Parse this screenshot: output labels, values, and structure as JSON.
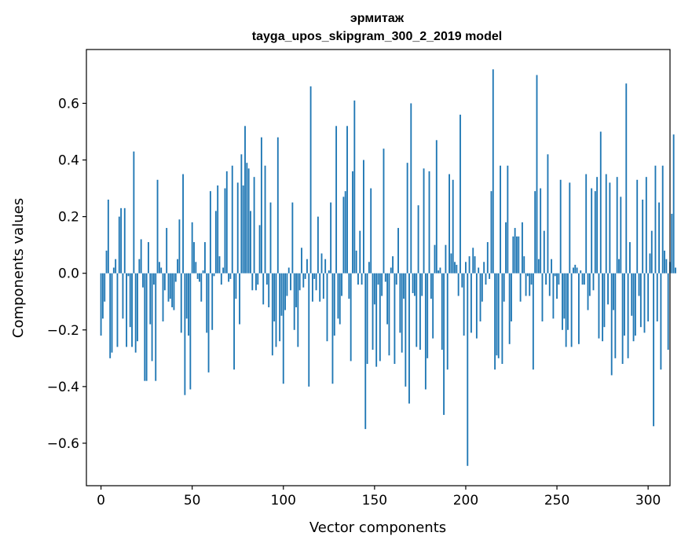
{
  "chart_data": {
    "type": "bar",
    "title": "эрмитаж",
    "subtitle": "tayga_upos_skipgram_300_2_2019 model",
    "xlabel": "Vector components",
    "ylabel": "Components values",
    "xlim": [
      -8,
      312
    ],
    "ylim": [
      -0.75,
      0.79
    ],
    "xticks": [
      0,
      50,
      100,
      150,
      200,
      250,
      300
    ],
    "xtick_labels": [
      "0",
      "50",
      "100",
      "150",
      "200",
      "250",
      "300"
    ],
    "yticks": [
      -0.6,
      -0.4,
      -0.2,
      0.0,
      0.2,
      0.4,
      0.6
    ],
    "ytick_labels": [
      "−0.6",
      "−0.4",
      "−0.2",
      "0.0",
      "0.2",
      "0.4",
      "0.6"
    ],
    "color": "#1f77b4",
    "values": [
      -0.22,
      -0.16,
      -0.1,
      0.08,
      0.26,
      -0.3,
      -0.28,
      0.02,
      0.05,
      -0.26,
      0.2,
      0.23,
      -0.16,
      0.23,
      -0.26,
      -0.01,
      -0.19,
      -0.26,
      0.43,
      -0.28,
      -0.24,
      0.05,
      0.12,
      -0.05,
      -0.38,
      -0.38,
      0.11,
      -0.18,
      -0.31,
      -0.04,
      -0.38,
      0.33,
      0.04,
      0.02,
      -0.17,
      -0.06,
      0.16,
      -0.1,
      -0.09,
      -0.12,
      -0.13,
      -0.03,
      0.05,
      0.19,
      -0.21,
      0.35,
      -0.43,
      -0.16,
      -0.22,
      -0.41,
      0.18,
      0.11,
      0.04,
      -0.02,
      -0.03,
      -0.1,
      0.01,
      0.11,
      -0.21,
      -0.35,
      0.29,
      -0.2,
      -0.01,
      0.22,
      0.31,
      0.06,
      -0.04,
      0.02,
      0.3,
      0.36,
      -0.03,
      -0.02,
      0.38,
      -0.34,
      -0.09,
      0.32,
      -0.18,
      0.42,
      0.31,
      0.52,
      0.39,
      0.37,
      0.22,
      -0.06,
      0.34,
      -0.06,
      -0.04,
      0.17,
      0.48,
      -0.11,
      0.38,
      -0.04,
      -0.12,
      0.25,
      -0.29,
      -0.17,
      -0.26,
      0.48,
      -0.24,
      -0.15,
      -0.39,
      -0.13,
      -0.08,
      0.02,
      -0.06,
      0.25,
      -0.2,
      -0.12,
      -0.26,
      -0.06,
      0.09,
      -0.05,
      -0.02,
      0.05,
      -0.4,
      0.66,
      -0.1,
      -0.02,
      -0.06,
      0.2,
      -0.1,
      0.07,
      -0.09,
      0.05,
      -0.24,
      0.01,
      0.25,
      -0.39,
      -0.22,
      0.52,
      -0.16,
      -0.18,
      -0.08,
      0.27,
      0.29,
      0.52,
      -0.09,
      -0.31,
      0.36,
      0.61,
      0.08,
      -0.04,
      0.15,
      -0.04,
      0.4,
      -0.55,
      -0.32,
      0.04,
      0.3,
      -0.27,
      -0.11,
      -0.33,
      -0.04,
      -0.31,
      -0.08,
      0.44,
      -0.03,
      -0.18,
      -0.29,
      0.02,
      0.06,
      -0.32,
      -0.04,
      0.16,
      -0.21,
      -0.28,
      -0.09,
      -0.4,
      0.39,
      -0.46,
      0.6,
      -0.07,
      -0.08,
      -0.26,
      0.24,
      -0.27,
      -0.08,
      0.37,
      -0.41,
      -0.3,
      0.36,
      -0.09,
      -0.23,
      0.1,
      0.47,
      0.01,
      0.02,
      -0.27,
      -0.5,
      0.1,
      -0.34,
      0.35,
      0.07,
      0.33,
      0.04,
      0.03,
      -0.08,
      0.56,
      -0.05,
      -0.22,
      0.04,
      -0.68,
      0.06,
      -0.21,
      0.09,
      0.06,
      -0.23,
      0.02,
      -0.17,
      -0.1,
      0.04,
      -0.04,
      0.11,
      -0.02,
      0.29,
      0.72,
      -0.34,
      -0.29,
      -0.3,
      0.38,
      -0.32,
      -0.1,
      0.18,
      0.38,
      -0.25,
      -0.17,
      0.13,
      0.16,
      0.13,
      0.13,
      -0.1,
      0.18,
      0.06,
      -0.08,
      -0.01,
      -0.08,
      -0.04,
      -0.34,
      0.29,
      0.7,
      0.05,
      0.3,
      -0.17,
      0.15,
      -0.04,
      0.42,
      -0.08,
      0.05,
      -0.16,
      -0.01,
      -0.09,
      -0.04,
      0.33,
      -0.2,
      -0.16,
      -0.26,
      -0.2,
      0.32,
      -0.26,
      0.02,
      0.03,
      0.02,
      -0.25,
      0.01,
      -0.04,
      -0.04,
      0.35,
      -0.13,
      -0.08,
      0.3,
      -0.06,
      0.29,
      0.34,
      -0.23,
      0.5,
      -0.24,
      -0.19,
      0.35,
      -0.11,
      0.32,
      -0.36,
      -0.13,
      -0.3,
      0.34,
      0.05,
      0.27,
      -0.32,
      -0.22,
      0.67,
      -0.3,
      0.11,
      -0.15,
      -0.24,
      -0.22,
      0.33,
      -0.08,
      -0.19,
      0.26,
      -0.21,
      0.34,
      -0.17,
      0.07,
      0.15,
      -0.54,
      0.38,
      -0.17,
      0.25,
      -0.34,
      0.38,
      0.08,
      0.05,
      -0.27,
      0.04,
      0.21,
      0.49,
      0.02
    ]
  }
}
